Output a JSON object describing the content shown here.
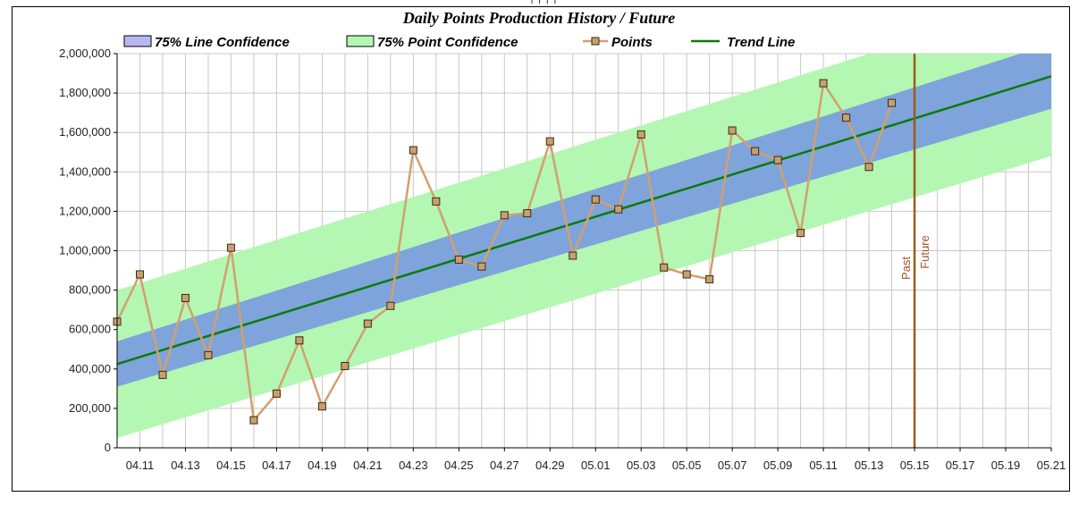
{
  "nav": [
    "",
    "",
    "",
    "",
    ""
  ],
  "colors": {
    "line_conf": "#7b9fdd",
    "point_conf": "#b3f7b3",
    "points_line": "#d2a06e",
    "marker_fill": "#c8a070",
    "marker_stroke": "#3a2a12",
    "trend": "#0a7a0a",
    "divider": "#a05a14",
    "grid": "#c8c8c8"
  },
  "chart_data": {
    "type": "line",
    "title": "Daily Points Production History / Future",
    "legend": {
      "placement": "top",
      "entries": [
        "75% Line Confidence",
        "75% Point Confidence",
        "Points",
        "Trend Line"
      ]
    },
    "x_ticks": [
      "04.11",
      "04.13",
      "04.15",
      "04.17",
      "04.19",
      "04.21",
      "04.23",
      "04.25",
      "04.27",
      "04.29",
      "05.01",
      "05.03",
      "05.05",
      "05.07",
      "05.09",
      "05.11",
      "05.13",
      "05.15",
      "05.17",
      "05.19",
      "05.21"
    ],
    "y_ticks": [
      "0",
      "200,000",
      "400,000",
      "600,000",
      "800,000",
      "1,000,000",
      "1,200,000",
      "1,400,000",
      "1,600,000",
      "1,800,000",
      "2,000,000"
    ],
    "ylim": [
      0,
      2000000
    ],
    "grid": true,
    "x_dates": [
      "04.10",
      "04.11",
      "04.12",
      "04.13",
      "04.14",
      "04.15",
      "04.16",
      "04.17",
      "04.18",
      "04.19",
      "04.20",
      "04.21",
      "04.22",
      "04.23",
      "04.24",
      "04.25",
      "04.26",
      "04.27",
      "04.28",
      "04.29",
      "04.30",
      "05.01",
      "05.02",
      "05.03",
      "05.04",
      "05.05",
      "05.06",
      "05.07",
      "05.08",
      "05.09",
      "05.10",
      "05.11",
      "05.12",
      "05.13",
      "05.14"
    ],
    "series": [
      {
        "name": "Points",
        "values": [
          640000,
          880000,
          370000,
          760000,
          470000,
          1015000,
          140000,
          275000,
          545000,
          210000,
          415000,
          630000,
          720000,
          1510000,
          1250000,
          955000,
          920000,
          1180000,
          1190000,
          1555000,
          975000,
          1260000,
          1210000,
          1590000,
          915000,
          880000,
          855000,
          1610000,
          1505000,
          1460000,
          1090000,
          1850000,
          1675000,
          1425000,
          1750000
        ]
      }
    ],
    "trend": {
      "start_date": "04.10",
      "start_value": 425000,
      "end_date": "05.21",
      "end_value": 1885000
    },
    "line_confidence_halfwidth": {
      "start": 115000,
      "end": 165000
    },
    "point_confidence_halfwidth": {
      "start": 375000,
      "end": 405000
    },
    "divider": {
      "date": "05.15",
      "labels": [
        "Past",
        "Future"
      ]
    }
  }
}
